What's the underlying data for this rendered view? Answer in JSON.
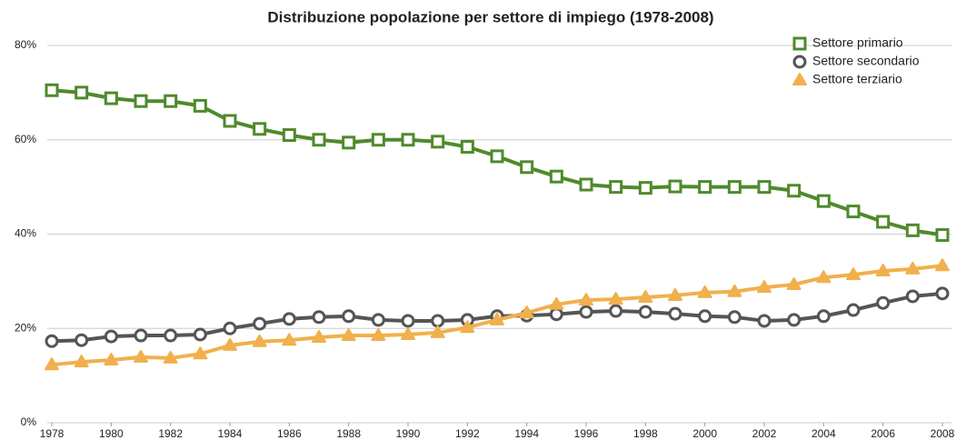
{
  "chart_data": {
    "type": "line",
    "title": "Distribuzione popolazione per settore di impiego (1978-2008)",
    "x": [
      1978,
      1979,
      1980,
      1981,
      1982,
      1983,
      1984,
      1985,
      1986,
      1987,
      1988,
      1989,
      1990,
      1991,
      1992,
      1993,
      1994,
      1995,
      1996,
      1997,
      1998,
      1999,
      2000,
      2001,
      2002,
      2003,
      2004,
      2005,
      2006,
      2007,
      2008
    ],
    "xlim": [
      1978,
      2008
    ],
    "xticks": [
      1978,
      1980,
      1982,
      1984,
      1986,
      1988,
      1990,
      1992,
      1994,
      1996,
      1998,
      2000,
      2002,
      2004,
      2006,
      2008
    ],
    "ylim": [
      0,
      80
    ],
    "yticks": [
      {
        "value": 0,
        "label": "0%"
      },
      {
        "value": 20,
        "label": "20%"
      },
      {
        "value": 40,
        "label": "40%"
      },
      {
        "value": 60,
        "label": "60%"
      },
      {
        "value": 80,
        "label": "80%"
      }
    ],
    "grid": true,
    "legend": "top-right",
    "series": [
      {
        "name": "Settore primario",
        "color": "#4f8a2b",
        "marker": "square",
        "values": [
          70.5,
          70,
          68.8,
          68.2,
          68.2,
          67.2,
          64,
          62.3,
          61,
          60,
          59.4,
          60,
          60,
          59.6,
          58.5,
          56.5,
          54.2,
          52.2,
          50.5,
          50,
          49.8,
          50.1,
          50,
          50,
          50,
          49.2,
          47,
          44.8,
          42.6,
          40.8,
          39.8
        ]
      },
      {
        "name": "Settore secondario",
        "color": "#555555",
        "marker": "circle",
        "values": [
          17.3,
          17.5,
          18.3,
          18.5,
          18.5,
          18.7,
          20,
          21,
          22,
          22.4,
          22.6,
          21.8,
          21.6,
          21.6,
          21.8,
          22.6,
          22.7,
          23,
          23.5,
          23.7,
          23.5,
          23.1,
          22.6,
          22.4,
          21.6,
          21.8,
          22.6,
          23.9,
          25.4,
          26.8,
          27.4
        ]
      },
      {
        "name": "Settore terziario",
        "color": "#f0b04c",
        "marker": "triangle",
        "values": [
          12.3,
          12.9,
          13.3,
          13.9,
          13.7,
          14.6,
          16.4,
          17.2,
          17.5,
          18.1,
          18.5,
          18.5,
          18.7,
          19.1,
          20.2,
          21.8,
          23.3,
          25.1,
          26,
          26.2,
          26.6,
          27,
          27.6,
          27.8,
          28.7,
          29.3,
          30.8,
          31.4,
          32.2,
          32.6,
          33.3
        ]
      }
    ]
  }
}
